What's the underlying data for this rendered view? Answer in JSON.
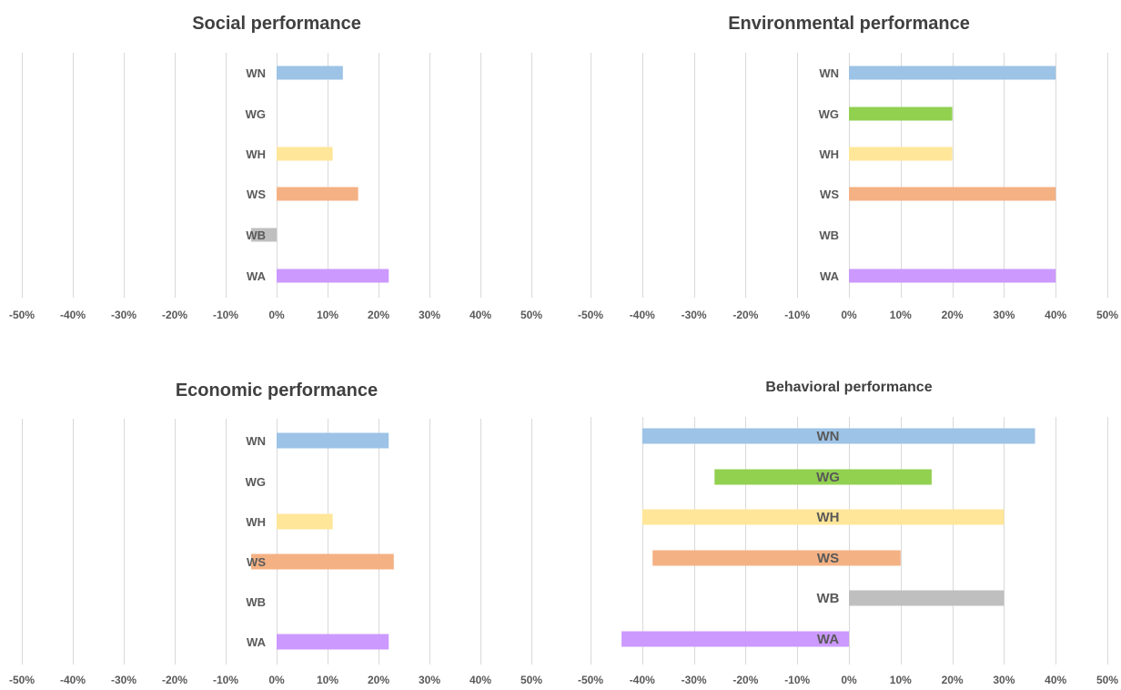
{
  "chart_data": [
    {
      "type": "bar",
      "orientation": "horizontal",
      "title": "Social performance",
      "categories": [
        "WN",
        "WG",
        "WH",
        "WS",
        "WB",
        "WA"
      ],
      "bars": [
        {
          "category": "WN",
          "start": 0,
          "end": 13,
          "color": "#9dc3e6"
        },
        {
          "category": "WH",
          "start": 0,
          "end": 11,
          "color": "#ffe699"
        },
        {
          "category": "WS",
          "start": 0,
          "end": 16,
          "color": "#f4b183"
        },
        {
          "category": "WB",
          "start": -5,
          "end": 0,
          "color": "#bfbfbf"
        },
        {
          "category": "WA",
          "start": 0,
          "end": 22,
          "color": "#cc99ff"
        }
      ],
      "xlim": [
        -50,
        50
      ],
      "xticks": [
        "-50%",
        "-40%",
        "-30%",
        "-20%",
        "-10%",
        "0%",
        "10%",
        "20%",
        "30%",
        "40%",
        "50%"
      ],
      "grid": true,
      "legend": "none"
    },
    {
      "type": "bar",
      "orientation": "horizontal",
      "title": "Environmental performance",
      "categories": [
        "WN",
        "WG",
        "WH",
        "WS",
        "WB",
        "WA"
      ],
      "bars": [
        {
          "category": "WN",
          "start": 0,
          "end": 40,
          "color": "#9dc3e6"
        },
        {
          "category": "WG",
          "start": 0,
          "end": 20,
          "color": "#92d050"
        },
        {
          "category": "WH",
          "start": 0,
          "end": 20,
          "color": "#ffe699"
        },
        {
          "category": "WS",
          "start": 0,
          "end": 40,
          "color": "#f4b183"
        },
        {
          "category": "WA",
          "start": 0,
          "end": 40,
          "color": "#cc99ff"
        }
      ],
      "xlim": [
        -50,
        50
      ],
      "xticks": [
        "-50%",
        "-40%",
        "-30%",
        "-20%",
        "-10%",
        "0%",
        "10%",
        "20%",
        "30%",
        "40%",
        "50%"
      ],
      "grid": true,
      "legend": "none"
    },
    {
      "type": "bar",
      "orientation": "horizontal",
      "title": "Economic performance",
      "categories": [
        "WN",
        "WG",
        "WH",
        "WS",
        "WB",
        "WA"
      ],
      "bars": [
        {
          "category": "WN",
          "start": 0,
          "end": 22,
          "color": "#9dc3e6"
        },
        {
          "category": "WH",
          "start": 0,
          "end": 11,
          "color": "#ffe699"
        },
        {
          "category": "WS",
          "start": -5,
          "end": 23,
          "color": "#f4b183"
        },
        {
          "category": "WA",
          "start": 0,
          "end": 22,
          "color": "#cc99ff"
        }
      ],
      "xlim": [
        -50,
        50
      ],
      "xticks": [
        "-50%",
        "-40%",
        "-30%",
        "-20%",
        "-10%",
        "0%",
        "10%",
        "20%",
        "30%",
        "40%",
        "50%"
      ],
      "grid": true,
      "legend": "none"
    },
    {
      "type": "bar",
      "orientation": "horizontal",
      "title": "Behavioral performance",
      "categories": [
        "WN",
        "WG",
        "WH",
        "WS",
        "WB",
        "WA"
      ],
      "bars": [
        {
          "category": "WN",
          "start": -40,
          "end": 36,
          "color": "#9dc3e6"
        },
        {
          "category": "WG",
          "start": -26,
          "end": 16,
          "color": "#92d050"
        },
        {
          "category": "WH",
          "start": -40,
          "end": 30,
          "color": "#ffe699"
        },
        {
          "category": "WS",
          "start": -38,
          "end": 10,
          "color": "#f4b183"
        },
        {
          "category": "WB",
          "start": 0,
          "end": 30,
          "color": "#bfbfbf"
        },
        {
          "category": "WA",
          "start": -44,
          "end": 0,
          "color": "#cc99ff"
        }
      ],
      "xlim": [
        -50,
        50
      ],
      "xticks": [
        "-50%",
        "-40%",
        "-30%",
        "-20%",
        "-10%",
        "0%",
        "10%",
        "20%",
        "30%",
        "40%",
        "50%"
      ],
      "grid": true,
      "legend": "none"
    }
  ]
}
